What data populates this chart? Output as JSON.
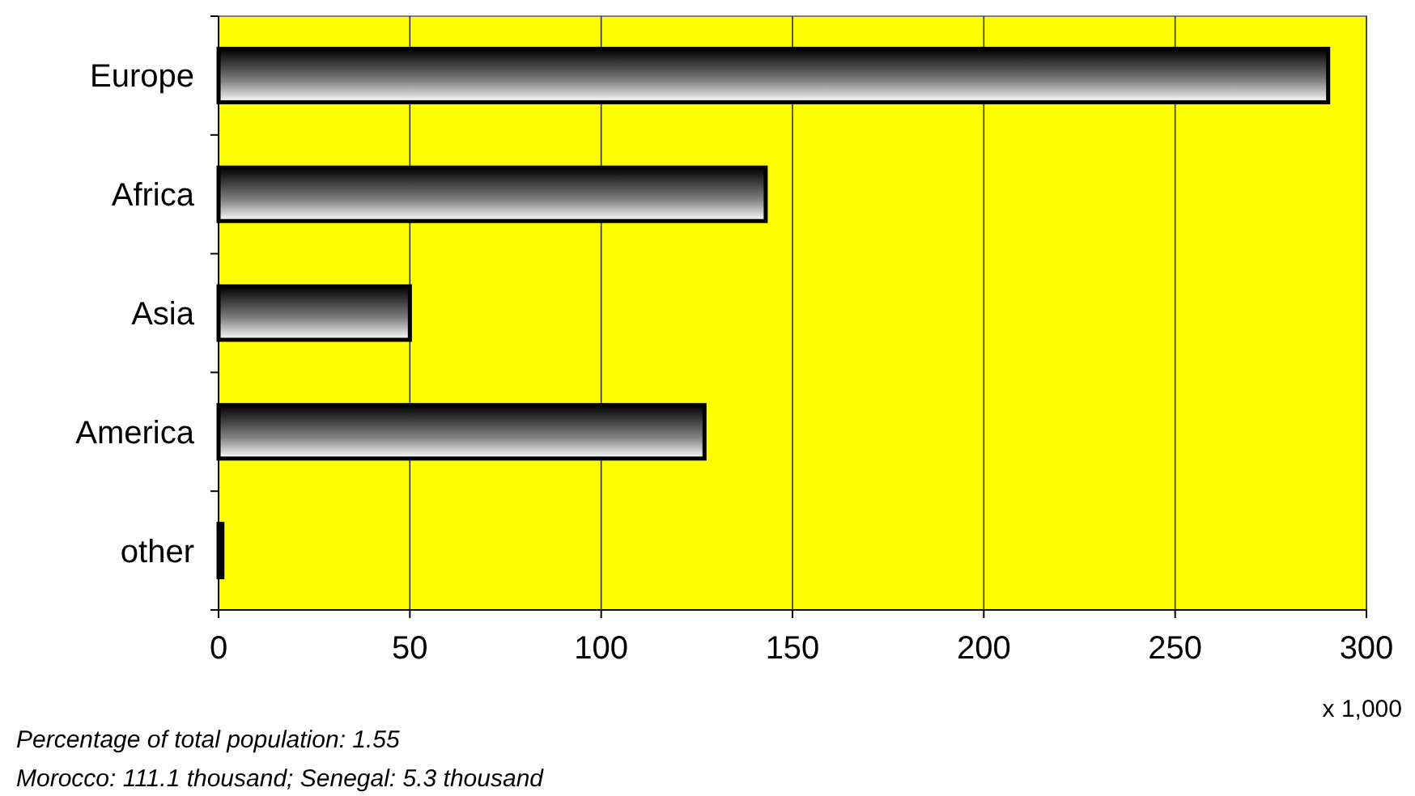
{
  "chart_data": {
    "type": "bar",
    "orientation": "horizontal",
    "categories": [
      "Europe",
      "Africa",
      "Asia",
      "America",
      "other"
    ],
    "values": [
      290,
      143,
      50,
      127,
      1
    ],
    "color": "#000000",
    "xlim": [
      0,
      300
    ],
    "xticks": [
      0,
      50,
      100,
      150,
      200,
      250,
      300
    ],
    "grid": "x",
    "xlabel": "x 1,000",
    "annotations": [
      "Percentage of total population: 1.55",
      "Morocco: 111.1 thousand; Senegal: 5.3 thousand"
    ]
  }
}
